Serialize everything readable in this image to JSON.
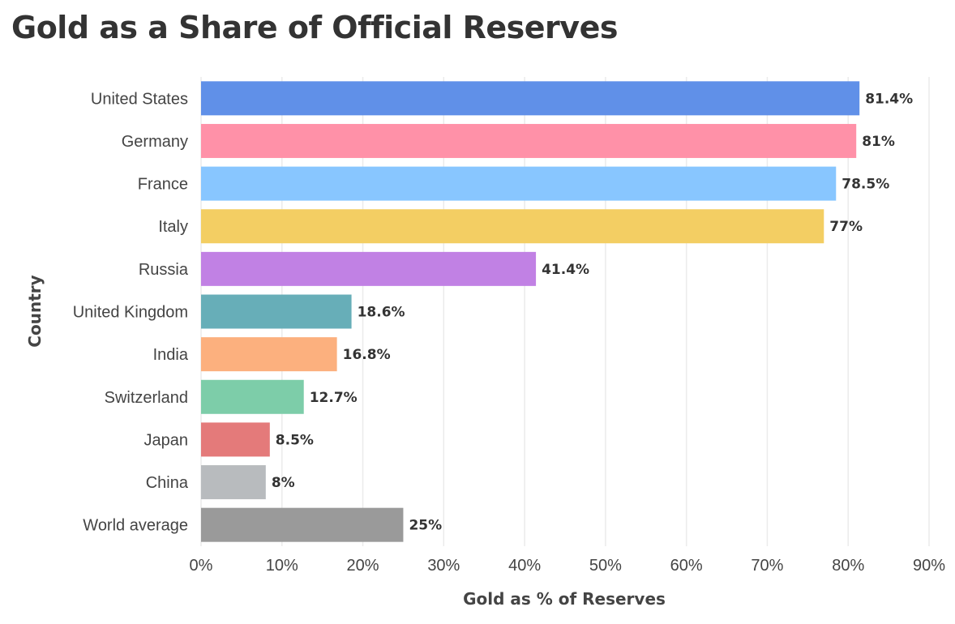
{
  "chart_data": {
    "type": "bar",
    "orientation": "horizontal",
    "title": "Gold as a Share of Official Reserves",
    "xlabel": "Gold as % of Reserves",
    "ylabel": "Country",
    "xlim": [
      0,
      90
    ],
    "x_ticks": [
      0,
      10,
      20,
      30,
      40,
      50,
      60,
      70,
      80,
      90
    ],
    "x_tick_labels": [
      "0%",
      "10%",
      "20%",
      "30%",
      "40%",
      "50%",
      "60%",
      "70%",
      "80%",
      "90%"
    ],
    "grid": true,
    "categories": [
      "United States",
      "Germany",
      "France",
      "Italy",
      "Russia",
      "United Kingdom",
      "India",
      "Switzerland",
      "Japan",
      "China",
      "World average"
    ],
    "values": [
      81.4,
      81,
      78.5,
      77,
      41.4,
      18.6,
      16.8,
      12.7,
      8.5,
      8,
      25
    ],
    "value_labels": [
      "81.4%",
      "81%",
      "78.5%",
      "77%",
      "41.4%",
      "18.6%",
      "16.8%",
      "12.7%",
      "8.5%",
      "8%",
      "25%"
    ],
    "colors": [
      "#6090e8",
      "#ff91a8",
      "#88c6ff",
      "#f3ce63",
      "#c181e4",
      "#67aeb8",
      "#fcb07e",
      "#7dcda9",
      "#e47a7a",
      "#b8bbbe",
      "#9a9a9a"
    ]
  }
}
